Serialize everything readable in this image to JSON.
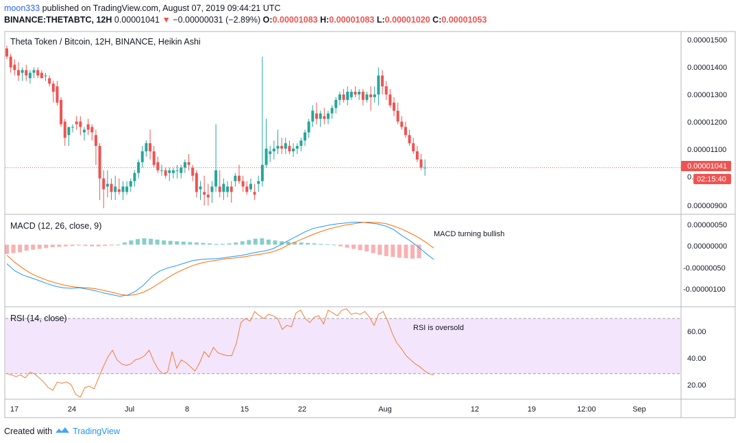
{
  "header": {
    "user": "moon333",
    "published_text": "published on TradingView.com, August 07, 2019 09:44:21 UTC",
    "symbol": "BINANCE:THETABTC, 12H",
    "price": "0.00001041",
    "change": "−0.00000031 (−2.89%)",
    "o_label": "O:",
    "o": "0.00001083",
    "h_label": "H:",
    "h": "0.00001083",
    "l_label": "L:",
    "l": "0.00001020",
    "c_label": "C:",
    "c": "0.00001053"
  },
  "footer": {
    "created_with": "Created with",
    "brand": "TradingView"
  },
  "colors": {
    "up": "#26a69a",
    "down": "#ef5350",
    "macd": "#2196f3",
    "signal": "#ff6d00",
    "rsi": "#f57c36",
    "rsi_band": "#f3e5fc"
  },
  "chart_data": [
    {
      "type": "candlestick",
      "title": "Theta Token / Bitcoin, 12H, BINANCE, Heikin Ashi",
      "x_tick_labels": [
        "17",
        "24",
        "Jul",
        "8",
        "15",
        "22",
        "Aug",
        "12",
        "19",
        "12:00",
        "Sep"
      ],
      "y_tick_labels": [
        "0.00001500",
        "0.00001400",
        "0.00001300",
        "0.00001200",
        "0.00001100",
        "0.00000900"
      ],
      "ylim": [
        8.8e-06,
        1.55e-05
      ],
      "last_price_label": "0.00001041",
      "countdown_label": "02:15:40",
      "last_price": 1.05e-05,
      "candles_ohlc": [
        [
          14.9,
          15.0,
          14.5,
          14.6
        ],
        [
          14.6,
          14.7,
          14.0,
          14.2
        ],
        [
          14.3,
          14.5,
          13.9,
          14.1
        ],
        [
          14.1,
          14.4,
          13.7,
          13.9
        ],
        [
          14.0,
          14.2,
          13.7,
          14.1
        ],
        [
          14.1,
          14.3,
          13.7,
          13.9
        ],
        [
          13.8,
          14.1,
          13.6,
          14.0
        ],
        [
          14.0,
          14.2,
          13.8,
          14.1
        ],
        [
          14.1,
          14.2,
          13.8,
          13.9
        ],
        [
          14.0,
          14.1,
          13.8,
          13.8
        ],
        [
          13.9,
          14.0,
          13.7,
          13.9
        ],
        [
          13.8,
          13.9,
          13.5,
          13.6
        ],
        [
          13.6,
          13.7,
          12.9,
          13.3
        ],
        [
          13.5,
          13.7,
          12.8,
          12.9
        ],
        [
          13.0,
          13.1,
          12.0,
          12.1
        ],
        [
          12.2,
          12.3,
          11.3,
          11.6
        ],
        [
          11.7,
          12.0,
          11.3,
          12.0
        ],
        [
          12.0,
          12.1,
          11.8,
          12.0
        ],
        [
          12.2,
          12.4,
          11.9,
          12.1
        ],
        [
          12.2,
          12.4,
          11.7,
          12.0
        ],
        [
          11.8,
          12.0,
          11.5,
          11.9
        ],
        [
          12.1,
          12.3,
          11.7,
          11.9
        ],
        [
          12.0,
          12.1,
          11.5,
          11.8
        ],
        [
          11.7,
          11.9,
          10.6,
          11.3
        ],
        [
          11.3,
          11.4,
          9.3,
          10.1
        ],
        [
          10.1,
          10.4,
          9.0,
          9.7
        ],
        [
          9.8,
          10.4,
          9.4,
          9.9
        ],
        [
          9.9,
          10.1,
          9.3,
          9.6
        ],
        [
          9.6,
          10.2,
          9.3,
          9.8
        ],
        [
          9.7,
          10.1,
          9.5,
          9.6
        ],
        [
          9.6,
          10.0,
          9.3,
          9.8
        ],
        [
          9.6,
          10.0,
          9.5,
          9.8
        ],
        [
          9.8,
          10.1,
          9.6,
          10.0
        ],
        [
          10.0,
          10.4,
          9.8,
          10.3
        ],
        [
          10.3,
          10.8,
          10.1,
          10.7
        ],
        [
          10.7,
          11.3,
          10.5,
          11.1
        ],
        [
          11.1,
          11.5,
          10.9,
          11.4
        ],
        [
          11.4,
          11.9,
          10.8,
          11.1
        ],
        [
          11.1,
          11.3,
          10.5,
          10.6
        ],
        [
          10.7,
          10.9,
          10.3,
          10.4
        ],
        [
          10.4,
          10.6,
          10.2,
          10.4
        ],
        [
          10.4,
          10.5,
          10.1,
          10.2
        ],
        [
          10.3,
          10.5,
          10.0,
          10.4
        ],
        [
          10.3,
          10.5,
          10.1,
          10.4
        ],
        [
          10.4,
          10.6,
          10.1,
          10.4
        ],
        [
          10.3,
          10.6,
          10.1,
          10.5
        ],
        [
          10.5,
          10.8,
          10.3,
          10.7
        ],
        [
          10.7,
          11.0,
          10.4,
          10.6
        ],
        [
          10.5,
          10.6,
          10.0,
          10.2
        ],
        [
          10.3,
          10.4,
          9.4,
          9.6
        ],
        [
          9.7,
          10.0,
          9.3,
          9.8
        ],
        [
          9.6,
          10.2,
          9.1,
          9.5
        ],
        [
          9.5,
          9.9,
          9.1,
          9.4
        ],
        [
          9.6,
          10.0,
          9.2,
          9.8
        ],
        [
          9.8,
          12.1,
          9.6,
          10.4
        ],
        [
          9.8,
          10.4,
          9.4,
          9.6
        ],
        [
          9.6,
          10.1,
          9.3,
          9.9
        ],
        [
          9.6,
          10.0,
          9.4,
          9.8
        ],
        [
          9.8,
          10.0,
          9.2,
          9.6
        ],
        [
          10.0,
          10.3,
          9.8,
          10.2
        ],
        [
          10.2,
          10.6,
          9.9,
          10.0
        ],
        [
          10.0,
          10.2,
          9.6,
          9.8
        ],
        [
          9.8,
          10.0,
          9.5,
          9.6
        ],
        [
          9.7,
          10.1,
          9.6,
          9.9
        ],
        [
          9.6,
          9.9,
          9.3,
          9.5
        ],
        [
          9.9,
          10.2,
          9.6,
          10.0
        ],
        [
          10.0,
          14.6,
          9.8,
          10.6
        ],
        [
          10.6,
          12.3,
          10.5,
          11.2
        ],
        [
          11.0,
          11.3,
          10.7,
          11.1
        ],
        [
          11.1,
          11.5,
          10.8,
          11.2
        ],
        [
          11.2,
          11.9,
          11.0,
          11.3
        ],
        [
          11.3,
          11.6,
          11.0,
          11.2
        ],
        [
          11.2,
          11.6,
          11.0,
          11.4
        ],
        [
          11.3,
          11.5,
          11.0,
          11.1
        ],
        [
          11.1,
          11.4,
          10.9,
          11.2
        ],
        [
          11.2,
          11.4,
          11.0,
          11.3
        ],
        [
          11.3,
          11.6,
          11.1,
          11.5
        ],
        [
          11.5,
          11.9,
          11.3,
          11.8
        ],
        [
          11.8,
          12.3,
          11.6,
          12.2
        ],
        [
          12.2,
          12.8,
          12.0,
          12.6
        ],
        [
          12.5,
          12.9,
          12.1,
          12.3
        ],
        [
          12.3,
          12.6,
          12.0,
          12.5
        ],
        [
          12.4,
          12.7,
          12.1,
          12.3
        ],
        [
          12.3,
          12.6,
          12.1,
          12.5
        ],
        [
          12.5,
          12.8,
          12.3,
          12.7
        ],
        [
          12.7,
          13.1,
          12.5,
          13.0
        ],
        [
          13.0,
          13.3,
          12.8,
          13.2
        ],
        [
          13.2,
          13.4,
          12.9,
          13.0
        ],
        [
          13.0,
          13.5,
          12.8,
          13.3
        ],
        [
          13.1,
          13.4,
          13.0,
          13.3
        ],
        [
          13.3,
          13.5,
          13.1,
          13.2
        ],
        [
          13.2,
          13.4,
          13.0,
          13.3
        ],
        [
          13.3,
          13.4,
          12.8,
          13.0
        ],
        [
          13.0,
          13.3,
          12.9,
          13.2
        ],
        [
          13.2,
          13.5,
          12.6,
          13.1
        ],
        [
          13.1,
          13.5,
          12.9,
          13.2
        ],
        [
          13.2,
          14.2,
          12.8,
          13.9
        ],
        [
          13.9,
          14.1,
          13.2,
          13.5
        ],
        [
          13.5,
          13.7,
          13.0,
          13.2
        ],
        [
          13.2,
          13.4,
          12.7,
          12.8
        ],
        [
          12.9,
          13.1,
          12.4,
          12.6
        ],
        [
          12.6,
          12.9,
          12.1,
          12.2
        ],
        [
          12.2,
          12.4,
          11.9,
          12.0
        ],
        [
          12.0,
          12.2,
          11.6,
          11.7
        ],
        [
          11.7,
          11.9,
          11.3,
          11.4
        ],
        [
          11.4,
          11.6,
          11.0,
          11.1
        ],
        [
          11.1,
          11.3,
          10.7,
          10.8
        ],
        [
          10.8,
          11.0,
          10.4,
          10.5
        ],
        [
          10.5,
          10.8,
          10.2,
          10.5
        ]
      ]
    },
    {
      "type": "line+histogram",
      "title": "MACD (12, 26, close, 9)",
      "annotation": "MACD turning bullish",
      "y_tick_labels": [
        "0.00000050",
        "0.00000000",
        "-0.00000050",
        "-0.00000100"
      ],
      "ylim": [
        -1.45e-06,
        7e-07
      ],
      "series": [
        {
          "values": [
            -0.45,
            -0.62,
            -0.72,
            -0.78,
            -0.85,
            -0.92,
            -0.98,
            -1.02,
            -1.03,
            -1.02,
            -1.05,
            -1.09,
            -1.14,
            -1.18,
            -1.22,
            -1.19,
            -1.1,
            -0.95,
            -0.75,
            -0.62,
            -0.55,
            -0.5,
            -0.44,
            -0.38,
            -0.35,
            -0.34,
            -0.33,
            -0.31,
            -0.28,
            -0.26,
            -0.22,
            -0.18,
            -0.15,
            -0.1,
            0.0,
            0.1,
            0.2,
            0.3,
            0.38,
            0.42,
            0.46,
            0.49,
            0.51,
            0.53,
            0.53,
            0.51,
            0.49,
            0.44,
            0.36,
            0.22,
            0.1,
            -0.04,
            -0.2,
            -0.35
          ]
        },
        {
          "values": [
            -0.25,
            -0.42,
            -0.56,
            -0.68,
            -0.77,
            -0.84,
            -0.9,
            -0.95,
            -0.99,
            -1.01,
            -1.02,
            -1.04,
            -1.08,
            -1.12,
            -1.17,
            -1.2,
            -1.18,
            -1.12,
            -1.02,
            -0.9,
            -0.78,
            -0.67,
            -0.58,
            -0.5,
            -0.44,
            -0.4,
            -0.37,
            -0.34,
            -0.32,
            -0.3,
            -0.27,
            -0.24,
            -0.21,
            -0.17,
            -0.1,
            0.0,
            0.08,
            0.16,
            0.24,
            0.31,
            0.37,
            0.42,
            0.46,
            0.49,
            0.52,
            0.53,
            0.52,
            0.5,
            0.44,
            0.37,
            0.28,
            0.18,
            0.06,
            -0.08
          ]
        }
      ],
      "histogram": [
        -0.22,
        -0.2,
        -0.18,
        -0.14,
        -0.12,
        -0.1,
        -0.08,
        -0.06,
        -0.05,
        -0.04,
        -0.03,
        -0.02,
        -0.03,
        -0.04,
        -0.04,
        -0.03,
        -0.02,
        0.0,
        0.05,
        0.1,
        0.13,
        0.15,
        0.14,
        0.12,
        0.1,
        0.09,
        0.08,
        0.07,
        0.06,
        0.05,
        0.04,
        0.03,
        0.02,
        0.02,
        0.03,
        0.05,
        0.08,
        0.11,
        0.14,
        0.15,
        0.12,
        0.1,
        0.08,
        0.07,
        0.06,
        0.05,
        0.04,
        0.03,
        0.02,
        0.01,
        0.0,
        -0.04,
        -0.07,
        -0.1,
        -0.13,
        -0.16,
        -0.2,
        -0.24,
        -0.27,
        -0.29,
        -0.31,
        -0.32,
        -0.33,
        -0.32
      ]
    },
    {
      "type": "line",
      "title": "RSI (14, close)",
      "annotation": "RSI is oversold",
      "y_tick_labels": [
        "60.00",
        "40.00",
        "20.00"
      ],
      "ylim": [
        12,
        78
      ],
      "band": [
        30,
        70
      ],
      "values": [
        30,
        29,
        28,
        29,
        27,
        31,
        30,
        27,
        24,
        20,
        18,
        24,
        23,
        24,
        22,
        15,
        13,
        20,
        21,
        19,
        27,
        35,
        42,
        47,
        40,
        37,
        36,
        37,
        40,
        41,
        43,
        47,
        39,
        33,
        30,
        31,
        46,
        34,
        40,
        38,
        35,
        32,
        38,
        46,
        42,
        49,
        45,
        44,
        43,
        43,
        52,
        67,
        70,
        68,
        75,
        72,
        70,
        73,
        72,
        70,
        62,
        65,
        64,
        74,
        76,
        70,
        67,
        71,
        72,
        66,
        76,
        74,
        72,
        76,
        77,
        73,
        74,
        73,
        75,
        71,
        65,
        73,
        75,
        68,
        59,
        52,
        48,
        43,
        40,
        37,
        35,
        32,
        30,
        29
      ]
    }
  ]
}
